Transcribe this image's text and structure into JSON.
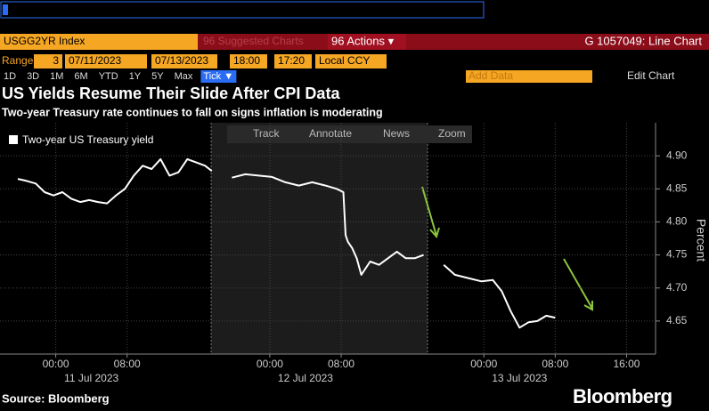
{
  "ui": {
    "security": "USGG2YR Index",
    "suggested": "96 Suggested Charts",
    "actions": "96 Actions ▾",
    "function": "G 1057049: Line Chart",
    "range_label": "Range",
    "range_n": "3",
    "start_date": "07/11/2023",
    "end_date": "07/13/2023",
    "start_time": "18:00",
    "end_time": "17:20",
    "currency": "Local CCY",
    "periods": [
      "1D",
      "3D",
      "1M",
      "6M",
      "YTD",
      "1Y",
      "5Y",
      "Max"
    ],
    "tick": "Tick ▼",
    "add_data": "Add Data",
    "edit_chart": "Edit Chart",
    "tools": [
      "Track",
      "Annotate",
      "News",
      "Zoom"
    ],
    "source": "Source: Bloomberg",
    "brand": "Bloomberg"
  },
  "chart_data": {
    "type": "line",
    "title": "US Yields Resume Their Slide After CPI Data",
    "subtitle": "Two-year Treasury rate continues to fall on signs inflation is moderating",
    "y_label": "Percent",
    "x": [
      "2023-07-10 19:45",
      "2023-07-10 20:45",
      "2023-07-10 21:45",
      "2023-07-10 22:45",
      "2023-07-10 23:45",
      "2023-07-11 00:45",
      "2023-07-11 01:45",
      "2023-07-11 02:45",
      "2023-07-11 03:45",
      "2023-07-11 04:45",
      "2023-07-11 05:45",
      "2023-07-11 06:45",
      "2023-07-11 07:45",
      "2023-07-11 08:45",
      "2023-07-11 09:45",
      "2023-07-11 10:45",
      "2023-07-11 11:45",
      "2023-07-11 12:45",
      "2023-07-11 13:45",
      "2023-07-11 14:45",
      "2023-07-11 15:45",
      "2023-07-11 16:45",
      "2023-07-11 17:30",
      "2023-07-11 18:30",
      "2023-07-11 19:45",
      "2023-07-11 21:15",
      "2023-07-11 22:45",
      "2023-07-12 00:15",
      "2023-07-12 01:45",
      "2023-07-12 03:15",
      "2023-07-12 04:45",
      "2023-07-12 06:15",
      "2023-07-12 07:30",
      "2023-07-12 08:15",
      "2023-07-12 08:30",
      "2023-07-12 08:45",
      "2023-07-12 09:15",
      "2023-07-12 09:45",
      "2023-07-12 10:15",
      "2023-07-12 11:15",
      "2023-07-12 12:15",
      "2023-07-12 13:15",
      "2023-07-12 14:15",
      "2023-07-12 15:15",
      "2023-07-12 16:15",
      "2023-07-12 17:15",
      "2023-07-12 18:30",
      "2023-07-12 19:30",
      "2023-07-12 20:45",
      "2023-07-12 22:15",
      "2023-07-12 23:45",
      "2023-07-13 01:00",
      "2023-07-13 02:00",
      "2023-07-13 03:00",
      "2023-07-13 04:00",
      "2023-07-13 05:00",
      "2023-07-13 06:00",
      "2023-07-13 07:00",
      "2023-07-13 08:00"
    ],
    "series": [
      {
        "name": "Two-year US Treasury yield",
        "color": "#ffffff",
        "values": [
          4.865,
          4.862,
          4.858,
          4.845,
          4.84,
          4.845,
          4.835,
          4.83,
          4.833,
          4.83,
          4.828,
          4.84,
          4.85,
          4.87,
          4.885,
          4.88,
          4.895,
          4.87,
          4.875,
          4.895,
          4.89,
          4.885,
          4.877,
          null,
          4.867,
          4.872,
          4.87,
          4.868,
          4.86,
          4.855,
          4.86,
          4.855,
          4.85,
          4.845,
          4.78,
          4.77,
          4.76,
          4.745,
          4.72,
          4.74,
          4.735,
          4.745,
          4.755,
          4.745,
          4.745,
          4.75,
          null,
          4.735,
          4.72,
          4.715,
          4.71,
          4.712,
          4.695,
          4.665,
          4.64,
          4.648,
          4.65,
          4.658,
          4.655
        ]
      }
    ],
    "xlim": [
      "2023-07-10 17:45",
      "2023-07-13 19:15"
    ],
    "xticks": [
      {
        "value": "2023-07-11 00:00",
        "label": "00:00"
      },
      {
        "value": "2023-07-11 08:00",
        "label": "08:00"
      },
      {
        "value": "2023-07-12 00:00",
        "label": "00:00"
      },
      {
        "value": "2023-07-12 08:00",
        "label": "08:00"
      },
      {
        "value": "2023-07-13 00:00",
        "label": "00:00"
      },
      {
        "value": "2023-07-13 08:00",
        "label": "08:00"
      },
      {
        "value": "2023-07-13 16:00",
        "label": "16:00"
      }
    ],
    "xday_ticks": [
      {
        "value": "2023-07-11 04:00",
        "label": "11 Jul 2023"
      },
      {
        "value": "2023-07-12 04:00",
        "label": "12 Jul 2023"
      },
      {
        "value": "2023-07-13 04:00",
        "label": "13 Jul 2023"
      }
    ],
    "ylim": [
      4.6,
      4.95
    ],
    "yticks": [
      4.65,
      {
        "value": 4.7,
        "label": "4.70"
      },
      4.75,
      {
        "value": 4.8,
        "label": "4.80"
      },
      4.85,
      {
        "value": 4.9,
        "label": "4.90"
      }
    ],
    "grid": true,
    "legend": "upper left"
  }
}
